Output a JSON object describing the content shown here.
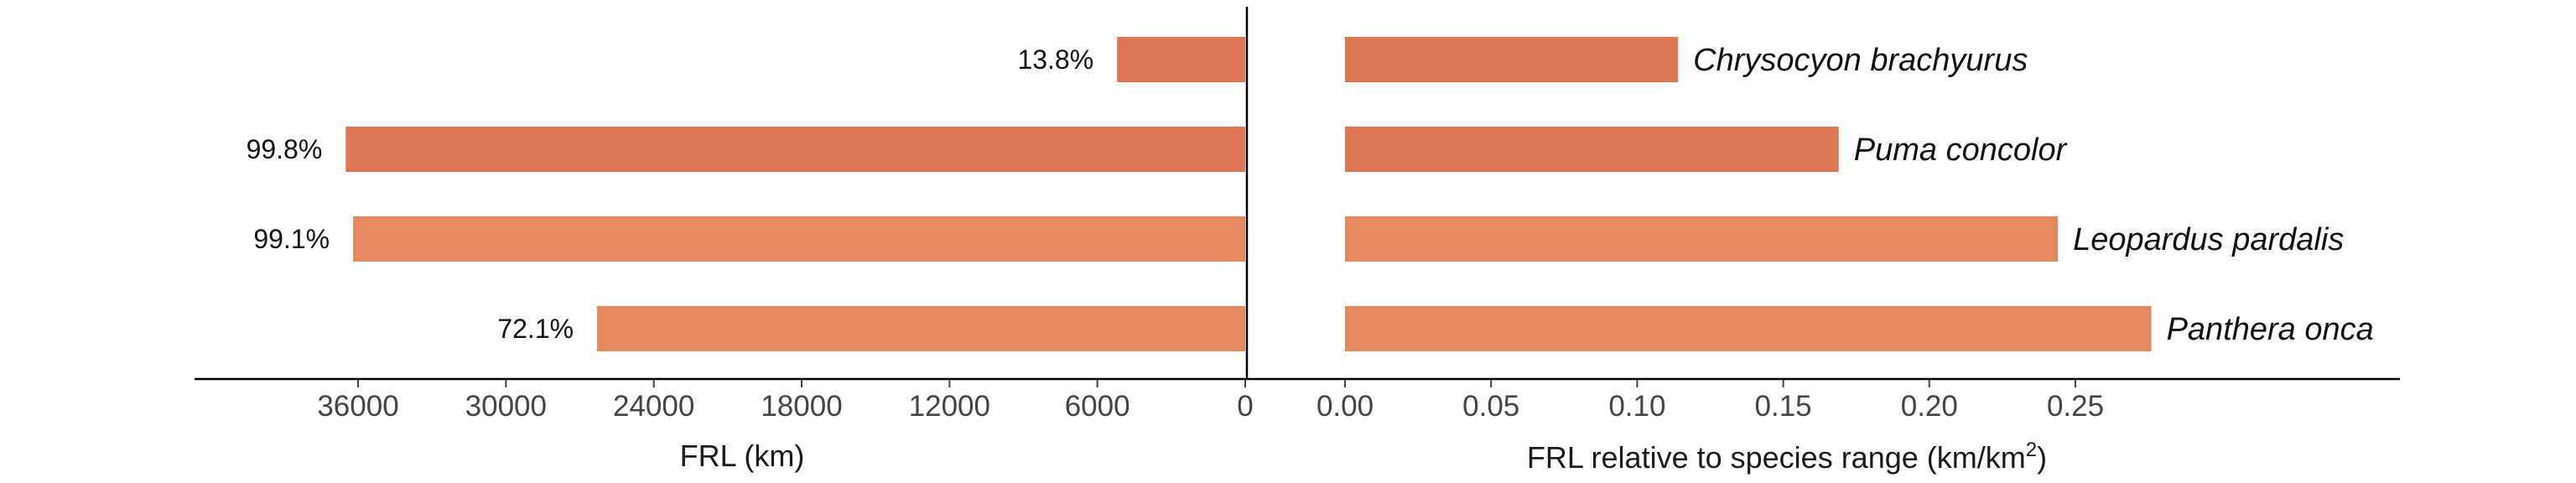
{
  "chart_data": [
    {
      "type": "bar",
      "orientation": "horizontal",
      "direction": "reversed",
      "categories": [
        "Chrysocyon brachyurus",
        "Puma concolor",
        "Leopardus pardalis",
        "Panthera onca"
      ],
      "values": [
        5200,
        36500,
        36200,
        26300
      ],
      "bar_labels": [
        "13.8%",
        "99.8%",
        "99.1%",
        "72.1%"
      ],
      "xlabel": "FRL (km)",
      "xlim": [
        0,
        42500
      ],
      "xticks": [
        "36000",
        "30000",
        "24000",
        "18000",
        "12000",
        "6000",
        "0"
      ],
      "xtick_values": [
        36000,
        30000,
        24000,
        18000,
        12000,
        6000,
        0
      ],
      "colors": [
        "#de7656",
        "#de7656",
        "#e4885e",
        "#e4885e"
      ]
    },
    {
      "type": "bar",
      "orientation": "horizontal",
      "categories": [
        "Chrysocyon brachyurus",
        "Puma concolor",
        "Leopardus pardalis",
        "Panthera onca"
      ],
      "values": [
        0.114,
        0.169,
        0.244,
        0.276
      ],
      "xlabel_main": "FRL relative to species range ",
      "xlabel_unit_open": "(km/km",
      "xlabel_unit_sup": "2",
      "xlabel_unit_close": ")",
      "xlim": [
        -0.008,
        0.277
      ],
      "xticks": [
        "0.00",
        "0.05",
        "0.10",
        "0.15",
        "0.20",
        "0.25"
      ],
      "xtick_values": [
        0,
        0.05,
        0.1,
        0.15,
        0.2,
        0.25
      ],
      "colors": [
        "#de7656",
        "#de7656",
        "#e4885e",
        "#e4885e"
      ]
    }
  ]
}
